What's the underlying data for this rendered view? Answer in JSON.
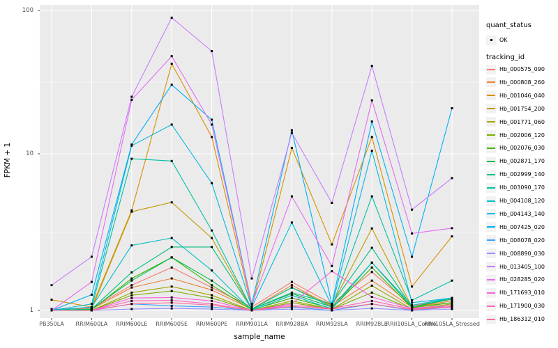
{
  "figure": {
    "background": "#FFFFFF",
    "panel_background": "#EBEBEB",
    "gridline_color": "#FFFFFF",
    "point_color": "#000000",
    "legend_key_background": "#F2F2F2",
    "axis_text_color": "#4D4D4D"
  },
  "axes": {
    "y_ticks": [
      "100",
      "10",
      "1"
    ],
    "y_tick_values": [
      100,
      10,
      1
    ]
  },
  "legend": {
    "quant_status": {
      "title": "quant_status",
      "items": [
        {
          "label": "OK",
          "symbol": "black-point"
        }
      ]
    },
    "tracking_id": {
      "title": "tracking_id"
    }
  },
  "chart_data": {
    "type": "line",
    "title": "",
    "xlabel": "sample_name",
    "ylabel": "FPKM + 1",
    "yscale": "log10",
    "ylim": [
      0.9,
      110
    ],
    "grid": true,
    "legend_position": "right",
    "point_marker": "small black square (quant_status OK)",
    "categories": [
      "PB350LA",
      "RRIM600LA",
      "RRIM600LE",
      "RRIM600SE",
      "RRIM600PE",
      "RRIM901LA",
      "RRIM928BA",
      "RRIM928LA",
      "RRIM928LE",
      "RRII105LA_Control",
      "RRII105LA_Stressed"
    ],
    "series": [
      {
        "name": "Hb_000575_090",
        "color": "#F8766D",
        "values": [
          1.02,
          1.03,
          1.45,
          1.88,
          1.4,
          1.05,
          1.52,
          1.1,
          1.76,
          1.07,
          1.18
        ]
      },
      {
        "name": "Hb_000808_260",
        "color": "#EA8331",
        "values": [
          1.0,
          1.02,
          1.4,
          1.6,
          1.35,
          1.02,
          1.45,
          1.06,
          1.55,
          1.05,
          1.15
        ]
      },
      {
        "name": "Hb_001046_040",
        "color": "#D89000",
        "values": [
          1.17,
          1.05,
          4.35,
          42.5,
          13.1,
          1.05,
          11.0,
          2.64,
          13.1,
          1.42,
          2.97
        ]
      },
      {
        "name": "Hb_001754_200",
        "color": "#C09B00",
        "values": [
          1.0,
          1.02,
          4.27,
          4.9,
          2.9,
          1.02,
          1.4,
          1.08,
          3.34,
          1.05,
          1.12
        ]
      },
      {
        "name": "Hb_001771_060",
        "color": "#A3A500",
        "values": [
          1.0,
          1.0,
          1.3,
          1.42,
          1.25,
          1.0,
          1.15,
          1.02,
          1.44,
          1.02,
          1.1
        ]
      },
      {
        "name": "Hb_002006_120",
        "color": "#7CAE00",
        "values": [
          1.0,
          1.0,
          1.25,
          1.33,
          1.2,
          1.0,
          1.12,
          1.02,
          1.3,
          1.02,
          1.08
        ]
      },
      {
        "name": "Hb_002076_030",
        "color": "#39B600",
        "values": [
          1.0,
          1.01,
          1.6,
          2.18,
          1.45,
          1.01,
          1.2,
          1.03,
          1.88,
          1.04,
          1.12
        ]
      },
      {
        "name": "Hb_002871_170",
        "color": "#00BB4E",
        "values": [
          1.0,
          1.02,
          1.55,
          2.18,
          1.55,
          1.02,
          1.28,
          1.05,
          2.02,
          1.05,
          1.18
        ]
      },
      {
        "name": "Hb_002999_140",
        "color": "#00BF7D",
        "values": [
          1.0,
          1.02,
          1.75,
          2.54,
          2.54,
          1.02,
          1.3,
          1.1,
          2.51,
          1.05,
          1.2
        ]
      },
      {
        "name": "Hb_003090_170",
        "color": "#00C1A3",
        "values": [
          1.0,
          1.05,
          9.3,
          9.0,
          3.24,
          1.02,
          1.4,
          1.05,
          5.35,
          1.16,
          1.55
        ]
      },
      {
        "name": "Hb_004108_120",
        "color": "#00BFC4",
        "values": [
          1.0,
          1.05,
          2.6,
          2.9,
          1.8,
          1.0,
          1.25,
          1.02,
          2.02,
          1.08,
          1.2
        ]
      },
      {
        "name": "Hb_004143_140",
        "color": "#00BAE0",
        "values": [
          1.0,
          1.1,
          11.4,
          16.0,
          6.5,
          1.05,
          3.64,
          1.07,
          10.5,
          1.12,
          1.2
        ]
      },
      {
        "name": "Hb_007425_020",
        "color": "#00B0F6",
        "values": [
          1.0,
          1.26,
          11.6,
          30.3,
          17.3,
          1.1,
          14.6,
          1.1,
          16.8,
          2.2,
          20.8
        ]
      },
      {
        "name": "Hb_008078_020",
        "color": "#35A2FF",
        "values": [
          1.0,
          1.0,
          1.1,
          1.07,
          1.05,
          1.0,
          1.05,
          1.0,
          1.1,
          1.0,
          1.05
        ]
      },
      {
        "name": "Hb_008890_030",
        "color": "#9590FF",
        "values": [
          1.0,
          1.0,
          1.02,
          1.03,
          1.02,
          1.0,
          1.02,
          1.0,
          1.03,
          1.0,
          1.02
        ]
      },
      {
        "name": "Hb_013405_100",
        "color": "#C77CFF",
        "values": [
          1.45,
          2.2,
          25.0,
          89.0,
          52.0,
          1.6,
          14.0,
          4.86,
          41.0,
          4.4,
          7.0
        ]
      },
      {
        "name": "Hb_028285_020",
        "color": "#E76BF3",
        "values": [
          1.0,
          1.52,
          23.8,
          48.0,
          16.0,
          1.09,
          5.35,
          1.92,
          23.6,
          3.1,
          3.35
        ]
      },
      {
        "name": "Hb_171693_010",
        "color": "#FA62DB",
        "values": [
          1.0,
          1.0,
          1.2,
          1.21,
          1.15,
          1.0,
          1.1,
          1.78,
          1.22,
          1.03,
          1.08
        ]
      },
      {
        "name": "Hb_171900_030",
        "color": "#FF62BC",
        "values": [
          1.0,
          1.0,
          1.15,
          1.16,
          1.1,
          1.0,
          1.08,
          1.03,
          1.15,
          1.02,
          1.06
        ]
      },
      {
        "name": "Hb_186312_010",
        "color": "#FF6A98",
        "values": [
          1.0,
          1.0,
          1.1,
          1.12,
          1.08,
          1.0,
          1.06,
          1.02,
          1.1,
          1.01,
          1.05
        ]
      }
    ]
  }
}
